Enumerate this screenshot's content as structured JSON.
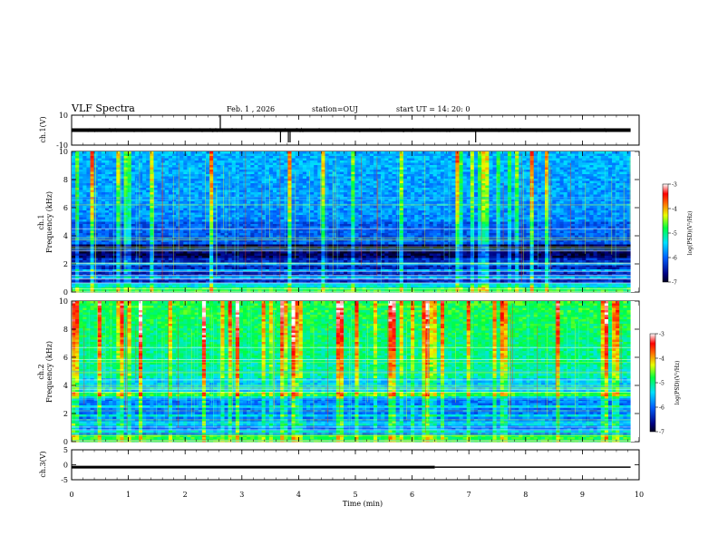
{
  "chart_data": {
    "type": "heatmap",
    "title": "VLF Spectra",
    "date": "Feb. 1 , 2026",
    "station": "station=OUJ",
    "start_time": "start UT = 14: 20: 0",
    "xlabel": "Time (min)",
    "x_ticks": [
      "0",
      "1",
      "2",
      "3",
      "4",
      "5",
      "6",
      "7",
      "8",
      "9",
      "10"
    ],
    "xlim": [
      0,
      10
    ],
    "panels": [
      {
        "id": "ch1-wave",
        "ylabel": "ch.1(V)",
        "ylim": [
          -10,
          10
        ],
        "y_ticks": [
          "10",
          "-10"
        ],
        "baseline": 0,
        "spikes_min": [
          2.62,
          3.68,
          3.82,
          3.85,
          7.12
        ]
      },
      {
        "id": "ch1-spec",
        "ylabel_top": "ch.1",
        "ylabel": "Frequency (kHz)",
        "ylim": [
          0,
          10
        ],
        "y_ticks": [
          "0",
          "2",
          "4",
          "6",
          "8",
          "10"
        ],
        "colorbar": {
          "label": "log(PSD)(V²/Hz)",
          "range": [
            -7,
            -3
          ],
          "ticks": [
            "-3",
            "-4",
            "-5",
            "-6",
            "-7"
          ]
        }
      },
      {
        "id": "ch2-spec",
        "ylabel_top": "ch.2",
        "ylabel": "Frequency (kHz)",
        "ylim": [
          0,
          10
        ],
        "y_ticks": [
          "0",
          "2",
          "4",
          "6",
          "8",
          "10"
        ],
        "colorbar": {
          "label": "log(PSD)(V²/Hz)",
          "range": [
            -7,
            -3
          ],
          "ticks": [
            "-3",
            "-4",
            "-5",
            "-6",
            "-7"
          ]
        }
      },
      {
        "id": "ch3-wave",
        "ylabel": "ch.3(V)",
        "ylim": [
          -5,
          5
        ],
        "y_ticks": [
          "5",
          "0",
          "-5"
        ],
        "level": -0.8,
        "thick_until_min": 6.4,
        "data_end_min": 9.85
      }
    ]
  },
  "colors": {
    "low": "#000080",
    "mid": "#00ff40",
    "high": "#ff0000",
    "top": "#ffffff"
  }
}
